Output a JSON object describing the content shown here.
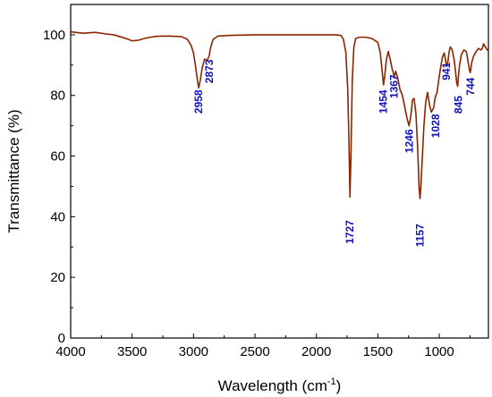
{
  "chart_data": {
    "type": "line",
    "title": "",
    "xlabel": "Wavelength (cm",
    "xlabel_sup": "-1",
    "xlabel_suffix": ")",
    "ylabel": "Transmittance (%)",
    "xlim": [
      4000,
      600
    ],
    "ylim": [
      0,
      110
    ],
    "x_reversed": true,
    "x_ticks": [
      4000,
      3500,
      3000,
      2500,
      2000,
      1500,
      1000
    ],
    "y_ticks": [
      0,
      20,
      40,
      60,
      80,
      100
    ],
    "grid": false,
    "line_color": "#8B2500",
    "label_color": "#1010C0",
    "series": [
      {
        "x": [
          4000,
          3900,
          3800,
          3700,
          3650,
          3600,
          3550,
          3500,
          3450,
          3400,
          3350,
          3300,
          3200,
          3100,
          3050,
          3020,
          3000,
          2985,
          2970,
          2958,
          2945,
          2930,
          2910,
          2890,
          2873,
          2860,
          2840,
          2800,
          2700,
          2500,
          2300,
          2000,
          1850,
          1800,
          1780,
          1760,
          1745,
          1735,
          1727,
          1718,
          1708,
          1695,
          1680,
          1650,
          1600,
          1550,
          1500,
          1480,
          1465,
          1454,
          1445,
          1430,
          1415,
          1400,
          1385,
          1375,
          1367,
          1355,
          1340,
          1320,
          1300,
          1280,
          1260,
          1246,
          1232,
          1218,
          1205,
          1190,
          1175,
          1165,
          1157,
          1150,
          1140,
          1125,
          1110,
          1095,
          1080,
          1065,
          1045,
          1035,
          1028,
          1018,
          1005,
          990,
          975,
          960,
          950,
          941,
          930,
          920,
          910,
          895,
          880,
          868,
          858,
          850,
          845,
          835,
          820,
          800,
          780,
          765,
          755,
          748,
          744,
          735,
          720,
          700,
          680,
          660,
          650,
          640,
          625,
          610,
          600
        ],
        "y": [
          101,
          100.5,
          100.8,
          100.2,
          100,
          99.4,
          98.8,
          98,
          98.2,
          98.8,
          99.2,
          99.5,
          99.6,
          99.4,
          98.5,
          96.5,
          94,
          90,
          85.5,
          82.5,
          85,
          89,
          92,
          91.5,
          93,
          96,
          98.5,
          99.6,
          99.8,
          100,
          100,
          100,
          100,
          99.8,
          98.5,
          94,
          82,
          65,
          46.5,
          62,
          85,
          96,
          98.8,
          99.2,
          99.2,
          98.8,
          97.5,
          94,
          88,
          83.5,
          86,
          92,
          94.5,
          92,
          89,
          87.5,
          86,
          88,
          86,
          82,
          80,
          76,
          72,
          70,
          73,
          78.5,
          79,
          74,
          62,
          50,
          46,
          50,
          58,
          70,
          78,
          81,
          77,
          74.5,
          76,
          79,
          80,
          81,
          85,
          89,
          92.5,
          94,
          92,
          89.5,
          91,
          94.5,
          96,
          95,
          92,
          88,
          84,
          83,
          86,
          90,
          93.5,
          95,
          94.5,
          91,
          88.5,
          87.5,
          88.5,
          91,
          93,
          94.5,
          95.5,
          95,
          95.5,
          97,
          96,
          95,
          95
        ]
      }
    ],
    "peak_labels": [
      {
        "text": "2958",
        "x": 2958,
        "y": 74
      },
      {
        "text": "2873",
        "x": 2873,
        "y": 84
      },
      {
        "text": "1727",
        "x": 1727,
        "y": 31
      },
      {
        "text": "1454",
        "x": 1454,
        "y": 74
      },
      {
        "text": "1367",
        "x": 1367,
        "y": 79
      },
      {
        "text": "1246",
        "x": 1246,
        "y": 61
      },
      {
        "text": "1157",
        "x": 1157,
        "y": 30
      },
      {
        "text": "1028",
        "x": 1028,
        "y": 66
      },
      {
        "text": "941",
        "x": 941,
        "y": 85
      },
      {
        "text": "845",
        "x": 845,
        "y": 74
      },
      {
        "text": "744",
        "x": 744,
        "y": 80
      }
    ]
  }
}
